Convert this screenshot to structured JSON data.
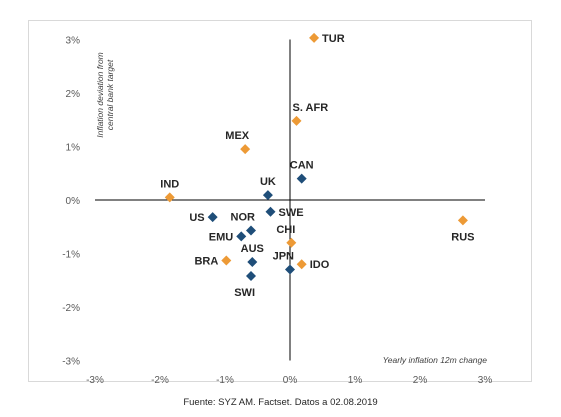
{
  "source_note": "Fuente: SYZ AM. Factset. Datos a 02.08.2019",
  "colors": {
    "orange": "#ED9A36",
    "blue": "#1F4E79",
    "axis": "#000000"
  },
  "chart_data": {
    "type": "scatter",
    "title": "",
    "xlabel": "Yearly inflation 12m change",
    "ylabel_lines": [
      "Inflation deviation from",
      "central bank target"
    ],
    "xlim": [
      -3,
      3
    ],
    "ylim": [
      -3,
      3
    ],
    "x_ticks": [
      -3,
      -2,
      -1,
      0,
      1,
      2,
      3
    ],
    "y_ticks": [
      3,
      2,
      1,
      0,
      -1,
      -2,
      -3
    ],
    "x_tick_labels": [
      "-3%",
      "-2%",
      "-1%",
      "0%",
      "1%",
      "2%",
      "3%"
    ],
    "y_tick_labels": [
      "3%",
      "2%",
      "1%",
      "0%",
      "-1%",
      "-2%",
      "-3%"
    ],
    "grid": false,
    "points": [
      {
        "label": "TUR",
        "x": 0.37,
        "y": 3.03,
        "color": "orange",
        "label_pos": "right"
      },
      {
        "label": "S. AFR",
        "x": 0.1,
        "y": 1.48,
        "color": "orange",
        "label_pos": "above-right"
      },
      {
        "label": "MEX",
        "x": -0.69,
        "y": 0.95,
        "color": "orange",
        "label_pos": "above-left"
      },
      {
        "label": "CAN",
        "x": 0.18,
        "y": 0.4,
        "color": "blue",
        "label_pos": "above"
      },
      {
        "label": "IND",
        "x": -1.85,
        "y": 0.05,
        "color": "orange",
        "label_pos": "above"
      },
      {
        "label": "UK",
        "x": -0.34,
        "y": 0.09,
        "color": "blue",
        "label_pos": "above"
      },
      {
        "label": "SWE",
        "x": -0.3,
        "y": -0.22,
        "color": "blue",
        "label_pos": "right"
      },
      {
        "label": "US",
        "x": -1.19,
        "y": -0.32,
        "color": "blue",
        "label_pos": "left"
      },
      {
        "label": "NOR",
        "x": -0.6,
        "y": -0.57,
        "color": "blue",
        "label_pos": "above-left"
      },
      {
        "label": "EMU",
        "x": -0.75,
        "y": -0.68,
        "color": "blue",
        "label_pos": "left"
      },
      {
        "label": "CHI",
        "x": 0.02,
        "y": -0.8,
        "color": "orange",
        "label_pos": "above-left"
      },
      {
        "label": "RUS",
        "x": 2.66,
        "y": -0.38,
        "color": "orange",
        "label_pos": "below"
      },
      {
        "label": "AUS",
        "x": -0.58,
        "y": -1.16,
        "color": "blue",
        "label_pos": "above"
      },
      {
        "label": "IDO",
        "x": 0.18,
        "y": -1.2,
        "color": "orange",
        "label_pos": "right"
      },
      {
        "label": "BRA",
        "x": -0.98,
        "y": -1.13,
        "color": "orange",
        "label_pos": "left"
      },
      {
        "label": "JPN",
        "x": 0.0,
        "y": -1.3,
        "color": "blue",
        "label_pos": "above-left"
      },
      {
        "label": "SWI",
        "x": -0.6,
        "y": -1.42,
        "color": "blue",
        "label_pos": "below-left"
      }
    ]
  }
}
